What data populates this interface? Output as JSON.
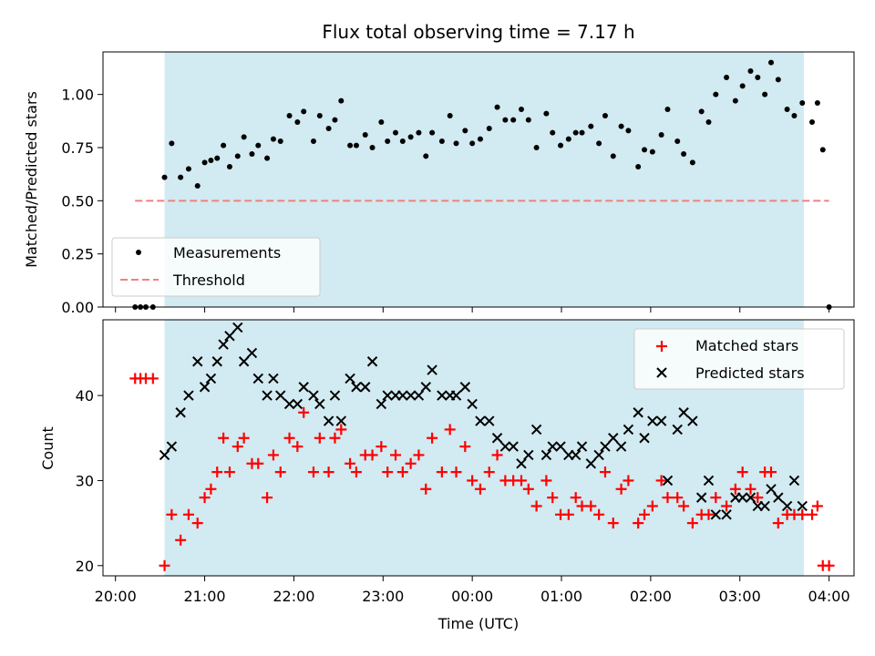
{
  "chart_data": [
    {
      "type": "scatter",
      "panel": "top",
      "title": "Flux total observing time = 7.17 h",
      "xlabel": "",
      "ylabel": "Matched/Predicted stars",
      "ylim": [
        0,
        1.2
      ],
      "yticks": [
        0.0,
        0.25,
        0.5,
        0.75,
        1.0
      ],
      "ytick_labels": [
        "0.00",
        "0.25",
        "0.50",
        "0.75",
        "1.00"
      ],
      "x_unit": "hours since 20:00 UTC",
      "xlim": [
        -0.14,
        8.28
      ],
      "shaded_interval": {
        "start": "20:33",
        "end": "03:43",
        "color": "#add8e6"
      },
      "legend": {
        "placement": "lower-left",
        "entries": [
          "Measurements",
          "Threshold"
        ]
      },
      "threshold": {
        "name": "Threshold",
        "value": 0.5,
        "x_start": 0.22,
        "x_end": 8.0,
        "color": "#f08080",
        "style": "dashed"
      },
      "series": [
        {
          "name": "Measurements",
          "color": "#000000",
          "x": [
            0.22,
            0.28,
            0.34,
            0.42,
            0.55,
            0.63,
            0.73,
            0.82,
            0.92,
            1.0,
            1.07,
            1.14,
            1.21,
            1.28,
            1.37,
            1.44,
            1.53,
            1.6,
            1.7,
            1.77,
            1.85,
            1.95,
            2.04,
            2.11,
            2.22,
            2.29,
            2.39,
            2.46,
            2.53,
            2.63,
            2.7,
            2.8,
            2.88,
            2.98,
            3.05,
            3.14,
            3.22,
            3.31,
            3.4,
            3.48,
            3.55,
            3.66,
            3.75,
            3.82,
            3.92,
            4.0,
            4.09,
            4.19,
            4.28,
            4.37,
            4.46,
            4.55,
            4.63,
            4.72,
            4.83,
            4.9,
            4.99,
            5.08,
            5.16,
            5.23,
            5.33,
            5.42,
            5.49,
            5.58,
            5.67,
            5.75,
            5.86,
            5.93,
            6.02,
            6.12,
            6.19,
            6.3,
            6.37,
            6.47,
            6.57,
            6.65,
            6.73,
            6.85,
            6.95,
            7.03,
            7.12,
            7.2,
            7.28,
            7.35,
            7.43,
            7.53,
            7.61,
            7.7,
            7.81,
            7.87,
            7.93,
            8.0
          ],
          "y": [
            0,
            0,
            0,
            0,
            0.61,
            0.77,
            0.61,
            0.65,
            0.57,
            0.68,
            0.69,
            0.7,
            0.76,
            0.66,
            0.71,
            0.8,
            0.72,
            0.76,
            0.7,
            0.79,
            0.78,
            0.9,
            0.87,
            0.92,
            0.78,
            0.9,
            0.84,
            0.88,
            0.97,
            0.76,
            0.76,
            0.81,
            0.75,
            0.87,
            0.78,
            0.82,
            0.78,
            0.8,
            0.82,
            0.71,
            0.82,
            0.78,
            0.9,
            0.77,
            0.83,
            0.77,
            0.79,
            0.84,
            0.94,
            0.88,
            0.88,
            0.93,
            0.88,
            0.75,
            0.91,
            0.82,
            0.76,
            0.79,
            0.82,
            0.82,
            0.85,
            0.77,
            0.9,
            0.71,
            0.85,
            0.83,
            0.66,
            0.74,
            0.73,
            0.81,
            0.93,
            0.78,
            0.72,
            0.68,
            0.92,
            0.87,
            1.0,
            1.08,
            0.97,
            1.04,
            1.11,
            1.08,
            1.0,
            1.15,
            1.07,
            0.93,
            0.9,
            0.96,
            0.87,
            0.96,
            0.74,
            0
          ]
        }
      ]
    },
    {
      "type": "scatter",
      "panel": "bottom",
      "title": "",
      "xlabel": "Time (UTC)",
      "ylabel": "Count",
      "ylim": [
        18.8,
        48.9
      ],
      "yticks": [
        20,
        30,
        40
      ],
      "ytick_labels": [
        "20",
        "30",
        "40"
      ],
      "x_unit": "hours since 20:00 UTC",
      "xlim": [
        -0.14,
        8.28
      ],
      "xticks": [
        0,
        1,
        2,
        3,
        4,
        5,
        6,
        7,
        8
      ],
      "xtick_labels": [
        "20:00",
        "21:00",
        "22:00",
        "23:00",
        "00:00",
        "01:00",
        "02:00",
        "03:00",
        "04:00"
      ],
      "shaded_interval": {
        "start": "20:33",
        "end": "03:43",
        "color": "#add8e6"
      },
      "legend": {
        "placement": "top-right",
        "entries": [
          "Matched stars",
          "Predicted stars"
        ]
      },
      "series": [
        {
          "name": "Matched stars",
          "marker": "+",
          "color": "#ff0000",
          "x": [
            0.22,
            0.28,
            0.34,
            0.42,
            0.55,
            0.63,
            0.73,
            0.82,
            0.92,
            1.0,
            1.07,
            1.14,
            1.21,
            1.28,
            1.37,
            1.44,
            1.53,
            1.6,
            1.7,
            1.77,
            1.85,
            1.95,
            2.04,
            2.11,
            2.22,
            2.29,
            2.39,
            2.46,
            2.53,
            2.63,
            2.7,
            2.8,
            2.88,
            2.98,
            3.05,
            3.14,
            3.22,
            3.31,
            3.4,
            3.48,
            3.55,
            3.66,
            3.75,
            3.82,
            3.92,
            4.0,
            4.09,
            4.19,
            4.28,
            4.37,
            4.46,
            4.55,
            4.63,
            4.72,
            4.83,
            4.9,
            4.99,
            5.08,
            5.16,
            5.23,
            5.33,
            5.42,
            5.49,
            5.58,
            5.67,
            5.75,
            5.86,
            5.93,
            6.02,
            6.12,
            6.19,
            6.3,
            6.37,
            6.47,
            6.57,
            6.65,
            6.73,
            6.85,
            6.95,
            7.03,
            7.12,
            7.2,
            7.28,
            7.35,
            7.43,
            7.53,
            7.61,
            7.7,
            7.81,
            7.87,
            7.93,
            8.0
          ],
          "y": [
            42,
            42,
            42,
            42,
            20,
            26,
            23,
            26,
            25,
            28,
            29,
            31,
            35,
            31,
            34,
            35,
            32,
            32,
            28,
            33,
            31,
            35,
            34,
            38,
            31,
            35,
            31,
            35,
            36,
            32,
            31,
            33,
            33,
            34,
            31,
            33,
            31,
            32,
            33,
            29,
            35,
            31,
            36,
            31,
            34,
            30,
            29,
            31,
            33,
            30,
            30,
            30,
            29,
            27,
            30,
            28,
            26,
            26,
            28,
            27,
            27,
            26,
            31,
            25,
            29,
            30,
            25,
            26,
            27,
            30,
            28,
            28,
            27,
            25,
            26,
            26,
            28,
            27,
            29,
            31,
            29,
            28,
            31,
            31,
            25,
            26,
            26,
            26,
            26,
            27,
            20,
            20
          ]
        },
        {
          "name": "Predicted stars",
          "marker": "x",
          "color": "#000000",
          "x": [
            0.55,
            0.63,
            0.73,
            0.82,
            0.92,
            1.0,
            1.07,
            1.14,
            1.21,
            1.28,
            1.37,
            1.44,
            1.53,
            1.6,
            1.7,
            1.77,
            1.85,
            1.95,
            2.04,
            2.11,
            2.22,
            2.29,
            2.39,
            2.46,
            2.53,
            2.63,
            2.7,
            2.8,
            2.88,
            2.98,
            3.05,
            3.14,
            3.22,
            3.31,
            3.4,
            3.48,
            3.55,
            3.66,
            3.75,
            3.82,
            3.92,
            4.0,
            4.09,
            4.19,
            4.28,
            4.37,
            4.46,
            4.55,
            4.63,
            4.72,
            4.83,
            4.9,
            4.99,
            5.08,
            5.16,
            5.23,
            5.33,
            5.42,
            5.49,
            5.58,
            5.67,
            5.75,
            5.86,
            5.93,
            6.02,
            6.12,
            6.19,
            6.3,
            6.37,
            6.47,
            6.57,
            6.65,
            6.73,
            6.85,
            6.95,
            7.03,
            7.12,
            7.2,
            7.28,
            7.35,
            7.43,
            7.53,
            7.61,
            7.7
          ],
          "y": [
            33,
            34,
            38,
            40,
            44,
            41,
            42,
            44,
            46,
            47,
            48,
            44,
            45,
            42,
            40,
            42,
            40,
            39,
            39,
            41,
            40,
            39,
            37,
            40,
            37,
            42,
            41,
            41,
            44,
            39,
            40,
            40,
            40,
            40,
            40,
            41,
            43,
            40,
            40,
            40,
            41,
            39,
            37,
            37,
            35,
            34,
            34,
            32,
            33,
            36,
            33,
            34,
            34,
            33,
            33,
            34,
            32,
            33,
            34,
            35,
            34,
            36,
            38,
            35,
            37,
            37,
            30,
            36,
            38,
            37,
            28,
            30,
            26,
            26,
            28,
            28,
            28,
            27,
            27,
            29,
            28,
            27,
            30,
            27
          ]
        }
      ]
    }
  ]
}
